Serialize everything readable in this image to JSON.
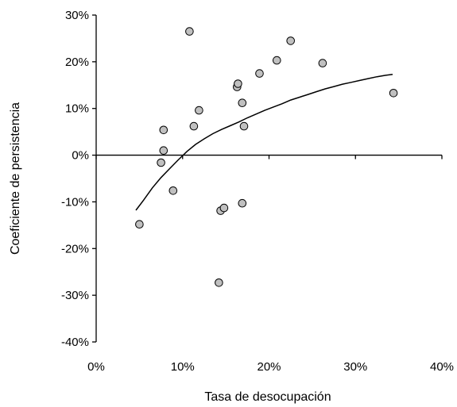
{
  "chart_data": {
    "type": "scatter",
    "xlabel": "Tasa de desocupación",
    "ylabel": "Coeficiente de persistencia",
    "xlim": [
      0,
      40
    ],
    "ylim": [
      -40,
      30
    ],
    "x_ticks": [
      0,
      10,
      20,
      30,
      40
    ],
    "y_ticks": [
      -40,
      -30,
      -20,
      -10,
      0,
      10,
      20,
      30
    ],
    "x_tick_labels": [
      "0%",
      "10%",
      "20%",
      "30%",
      "40%"
    ],
    "y_tick_labels": [
      "-40%",
      "-30%",
      "-20%",
      "-10%",
      "0%",
      "10%",
      "20%",
      "30%"
    ],
    "grid": false,
    "legend": "none",
    "series": [
      {
        "type": "scatter",
        "marker_color": "#c0c0c0",
        "points": [
          {
            "x": 5.0,
            "y": -14.8
          },
          {
            "x": 7.5,
            "y": -1.6
          },
          {
            "x": 7.8,
            "y": 5.4
          },
          {
            "x": 7.8,
            "y": 1.0
          },
          {
            "x": 8.9,
            "y": -7.6
          },
          {
            "x": 10.8,
            "y": 26.5
          },
          {
            "x": 11.3,
            "y": 6.2
          },
          {
            "x": 11.9,
            "y": 9.6
          },
          {
            "x": 14.2,
            "y": -27.3
          },
          {
            "x": 14.4,
            "y": -11.9
          },
          {
            "x": 14.8,
            "y": -11.3
          },
          {
            "x": 16.3,
            "y": 14.6
          },
          {
            "x": 16.4,
            "y": 15.3
          },
          {
            "x": 16.9,
            "y": -10.3
          },
          {
            "x": 16.9,
            "y": 11.2
          },
          {
            "x": 17.1,
            "y": 6.2
          },
          {
            "x": 18.9,
            "y": 17.5
          },
          {
            "x": 20.9,
            "y": 20.3
          },
          {
            "x": 22.5,
            "y": 24.5
          },
          {
            "x": 26.2,
            "y": 19.7
          },
          {
            "x": 34.4,
            "y": 13.3
          }
        ]
      },
      {
        "type": "line",
        "line_color": "#000000",
        "points": [
          {
            "x": 4.6,
            "y": -11.8
          },
          {
            "x": 5.5,
            "y": -9.6
          },
          {
            "x": 6.5,
            "y": -7.0
          },
          {
            "x": 7.5,
            "y": -4.8
          },
          {
            "x": 8.5,
            "y": -2.9
          },
          {
            "x": 9.5,
            "y": -1.0
          },
          {
            "x": 10.5,
            "y": 0.8
          },
          {
            "x": 11.5,
            "y": 2.3
          },
          {
            "x": 12.5,
            "y": 3.5
          },
          {
            "x": 13.5,
            "y": 4.6
          },
          {
            "x": 14.5,
            "y": 5.5
          },
          {
            "x": 15.5,
            "y": 6.3
          },
          {
            "x": 16.5,
            "y": 7.1
          },
          {
            "x": 17.5,
            "y": 8.0
          },
          {
            "x": 18.5,
            "y": 8.8
          },
          {
            "x": 19.5,
            "y": 9.6
          },
          {
            "x": 20.5,
            "y": 10.3
          },
          {
            "x": 21.5,
            "y": 11.0
          },
          {
            "x": 22.5,
            "y": 11.8
          },
          {
            "x": 23.5,
            "y": 12.4
          },
          {
            "x": 24.5,
            "y": 13.0
          },
          {
            "x": 25.5,
            "y": 13.6
          },
          {
            "x": 26.5,
            "y": 14.2
          },
          {
            "x": 27.5,
            "y": 14.7
          },
          {
            "x": 28.5,
            "y": 15.2
          },
          {
            "x": 29.5,
            "y": 15.6
          },
          {
            "x": 30.5,
            "y": 16.0
          },
          {
            "x": 31.5,
            "y": 16.4
          },
          {
            "x": 32.5,
            "y": 16.8
          },
          {
            "x": 33.5,
            "y": 17.1
          },
          {
            "x": 34.3,
            "y": 17.3
          }
        ]
      }
    ]
  }
}
